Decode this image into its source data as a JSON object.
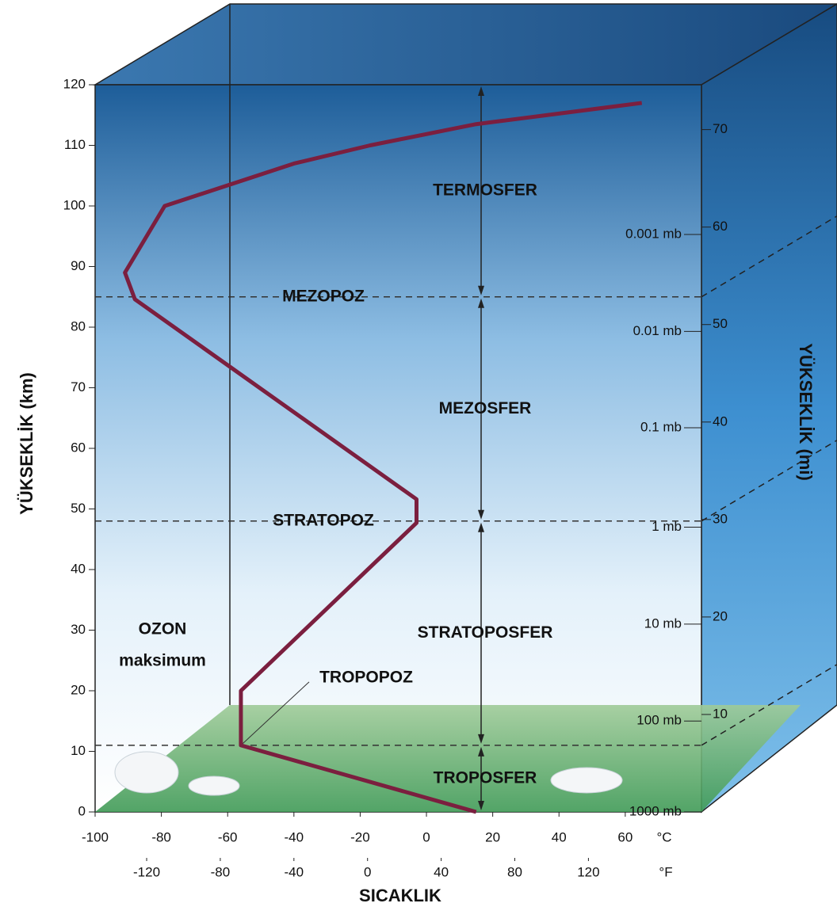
{
  "chart_data": {
    "type": "line",
    "x_label": "SICAKLIK",
    "y_label": "YÜKSEKLİK (km)",
    "y2_label": "YÜKSEKLİK (mi)",
    "x_unit": "°C",
    "x2_unit": "°F",
    "xlim": [
      -100,
      83
    ],
    "xticks": [
      -100,
      -80,
      -60,
      -40,
      -20,
      0,
      20,
      40,
      60
    ],
    "x2lim": [
      -148,
      181.4
    ],
    "x2ticks": [
      -120,
      -80,
      -40,
      0,
      40,
      80,
      120
    ],
    "ylim": [
      0,
      120
    ],
    "yticks": [
      0,
      10,
      20,
      30,
      40,
      50,
      60,
      70,
      80,
      90,
      100,
      110,
      120
    ],
    "y2lim": [
      0,
      74.6
    ],
    "y2ticks": [
      10,
      20,
      30,
      40,
      50,
      60,
      70
    ],
    "pressure_labels": [
      {
        "label": "1000 mb",
        "altitude": 0
      },
      {
        "label": "100 mb",
        "altitude": 15
      },
      {
        "label": "10 mb",
        "altitude": 31
      },
      {
        "label": "1 mb",
        "altitude": 47
      },
      {
        "label": "0.1 mb",
        "altitude": 63.4
      },
      {
        "label": "0.01 mb",
        "altitude": 79.3
      },
      {
        "label": "0.001 mb",
        "altitude": 95.3
      }
    ],
    "series": [
      {
        "color": "#7b1f3f",
        "x": [
          15,
          -56,
          -56,
          -3,
          -3,
          -88,
          -91,
          -79,
          -40,
          -17,
          15,
          65
        ],
        "values": [
          0,
          11,
          20,
          47.7,
          51.6,
          84.6,
          89,
          100,
          107,
          110,
          113.5,
          117
        ]
      }
    ],
    "boundaries": [
      {
        "label": "TROPOPOZ",
        "altitude": 11
      },
      {
        "label": "STRATOPOZ",
        "altitude": 48
      },
      {
        "label": "MEZOPOZ",
        "altitude": 85
      }
    ],
    "layers": [
      "TROPOSFER",
      "STRATOPOSFER",
      "MEZOSFER",
      "TERMOSFER"
    ],
    "annotation": [
      "OZON",
      "maksimum"
    ]
  }
}
